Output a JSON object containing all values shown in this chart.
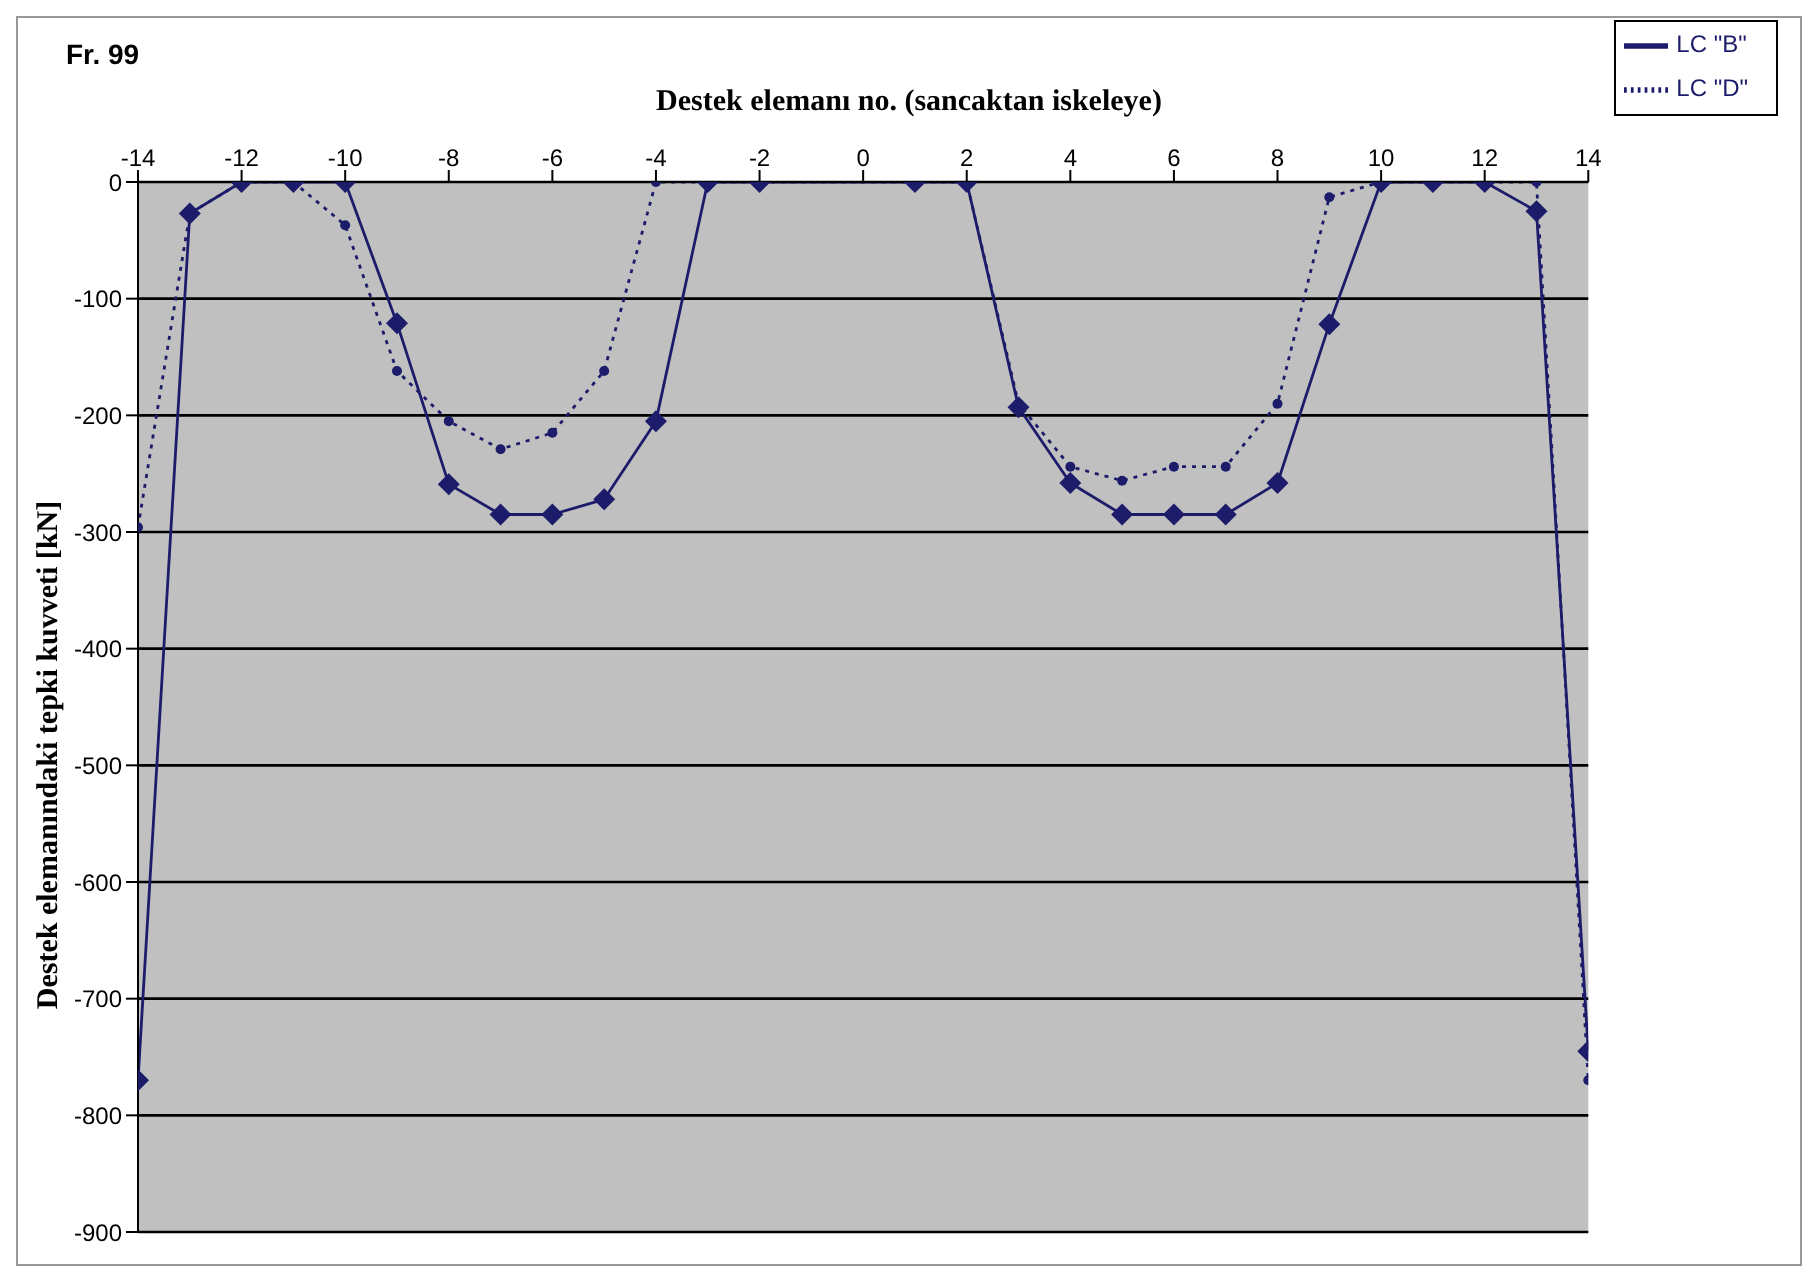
{
  "chart_data": {
    "type": "line",
    "title": "Fr. 99",
    "xlabel": "Destek elemanı no. (sancaktan iskeleye)",
    "ylabel": "Destek elemanındaki tepki kuvveti [kN]",
    "x": [
      -14,
      -13,
      -12,
      -11,
      -10,
      -9,
      -8,
      -7,
      -6,
      -5,
      -4,
      -3,
      -2,
      1,
      2,
      3,
      4,
      5,
      6,
      7,
      8,
      9,
      10,
      11,
      12,
      13,
      14
    ],
    "series": [
      {
        "name": "LC \"B\"",
        "color": "#1c1c6b",
        "marker": "diamond",
        "line_style": "solid",
        "values": [
          -770,
          -27,
          0,
          0,
          0,
          -121,
          -259,
          -285,
          -285,
          -272,
          -205,
          0,
          0,
          0,
          0,
          -193,
          -258,
          -285,
          -285,
          -285,
          -258,
          -122,
          0,
          0,
          0,
          -25,
          -745
        ]
      },
      {
        "name": "LC \"D\"",
        "color": "#1c1c6b",
        "marker": "circle",
        "line_style": "dotted",
        "values": [
          -296,
          -27,
          0,
          0,
          -37,
          -162,
          -205,
          -229,
          -215,
          -162,
          0,
          0,
          0,
          0,
          0,
          -190,
          -244,
          -256,
          -244,
          -244,
          -190,
          -13,
          0,
          0,
          0,
          0,
          -770
        ]
      }
    ],
    "xlim": [
      -14,
      14
    ],
    "xticks": [
      -14,
      -12,
      -10,
      -8,
      -6,
      -4,
      -2,
      0,
      2,
      4,
      6,
      8,
      10,
      12,
      14
    ],
    "ylim": [
      -900,
      0
    ],
    "yticks": [
      0,
      -100,
      -200,
      -300,
      -400,
      -500,
      -600,
      -700,
      -800,
      -900
    ],
    "grid": "y",
    "legend": "top right"
  }
}
